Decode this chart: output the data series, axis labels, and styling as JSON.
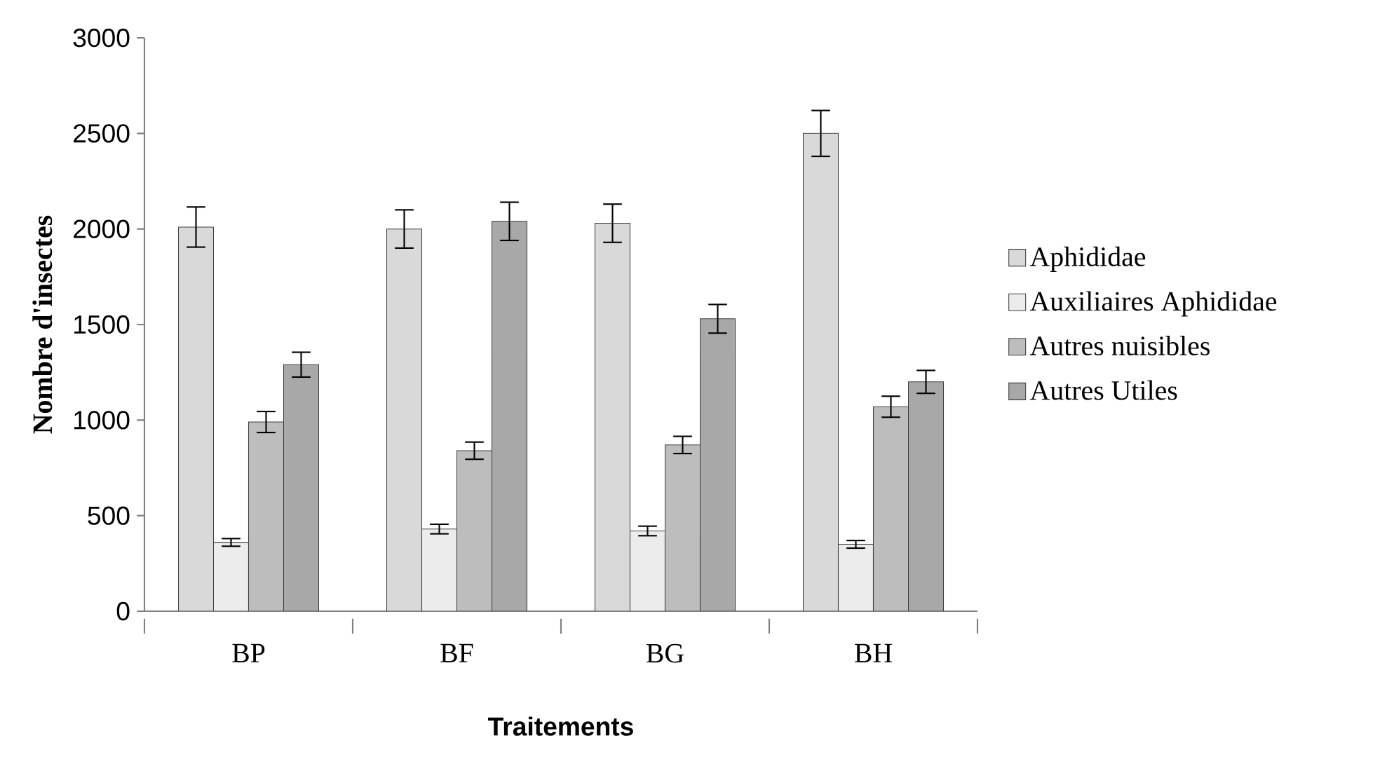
{
  "chart_data": {
    "type": "bar",
    "xlabel": "Traitements",
    "ylabel": "Nombre d'insectes",
    "categories": [
      "BP",
      "BF",
      "BG",
      "BH"
    ],
    "series": [
      {
        "name": "Aphididae",
        "color": "#d9d9d9",
        "values": [
          2010,
          2000,
          2030,
          2500
        ],
        "errors": [
          105,
          100,
          100,
          120
        ]
      },
      {
        "name": "Auxiliaires Aphididae",
        "color": "#ececec",
        "values": [
          360,
          430,
          420,
          350
        ],
        "errors": [
          20,
          25,
          25,
          20
        ]
      },
      {
        "name": "Autres nuisibles",
        "color": "#bdbdbd",
        "values": [
          990,
          840,
          870,
          1070
        ],
        "errors": [
          55,
          45,
          45,
          55
        ]
      },
      {
        "name": "Autres Utiles",
        "color": "#a8a8a8",
        "values": [
          1290,
          2040,
          1530,
          1200
        ],
        "errors": [
          65,
          100,
          75,
          60
        ]
      }
    ],
    "ylim": [
      0,
      3000
    ],
    "yticks": [
      0,
      500,
      1000,
      1500,
      2000,
      2500,
      3000
    ],
    "grid": false,
    "legend": "right"
  }
}
